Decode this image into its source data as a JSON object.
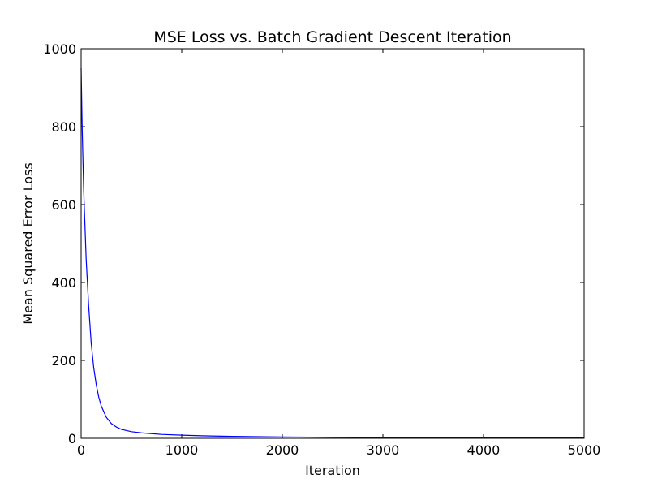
{
  "chart_data": {
    "type": "line",
    "title": "MSE Loss vs. Batch Gradient Descent Iteration",
    "xlabel": "Iteration",
    "ylabel": "Mean Squared Error Loss",
    "xlim": [
      0,
      5000
    ],
    "ylim": [
      0,
      1000
    ],
    "xticks": [
      0,
      1000,
      2000,
      3000,
      4000,
      5000
    ],
    "yticks": [
      0,
      200,
      400,
      600,
      800,
      1000
    ],
    "grid": false,
    "legend": "none",
    "line_color": "#0000ff",
    "series": [
      {
        "x": [
          0,
          10,
          25,
          50,
          75,
          100,
          125,
          150,
          175,
          200,
          250,
          300,
          350,
          400,
          500,
          600,
          700,
          800,
          1000,
          1200,
          1500,
          2000,
          2500,
          3000,
          3500,
          4000,
          4500,
          5000
        ],
        "y": [
          950,
          800,
          640,
          460,
          340,
          245,
          182,
          138,
          106,
          83,
          54,
          38,
          29,
          23,
          17,
          14,
          12,
          10,
          8,
          6.5,
          5,
          3.5,
          2.6,
          2,
          1.6,
          1.3,
          1.1,
          1
        ]
      }
    ]
  }
}
